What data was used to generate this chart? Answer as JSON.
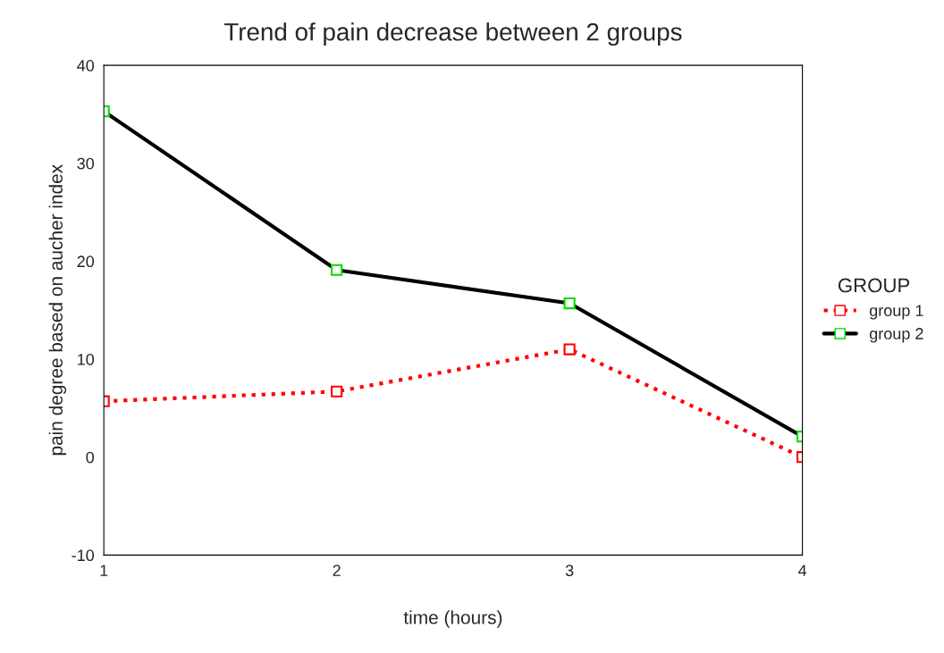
{
  "chart_data": {
    "type": "line",
    "title": "Trend of pain decrease between 2 groups",
    "xlabel": "time (hours)",
    "ylabel": "pain degree based on aucher index",
    "legend_title": "GROUP",
    "x": [
      1,
      2,
      3,
      4
    ],
    "series": [
      {
        "name": "group 1",
        "color": "#ff0000",
        "colors": [
          "#ff0000",
          "#ff0000",
          "#ff0000",
          "#ff0000"
        ],
        "line_style": "dotted",
        "values": [
          5.7,
          6.7,
          11.0,
          0.0
        ]
      },
      {
        "name": "group 2",
        "color": "#000000",
        "colors": [
          "#00dd00",
          "#00dd00",
          "#00dd00",
          "#00dd00"
        ],
        "line_style": "solid",
        "values": [
          35.3,
          19.1,
          15.7,
          2.1
        ]
      }
    ],
    "xlim": [
      1,
      4
    ],
    "xticks": [
      1,
      2,
      3,
      4
    ],
    "ylim": [
      -10,
      40
    ],
    "yticks": [
      -10,
      0,
      10,
      20,
      30,
      40
    ],
    "marker": "square",
    "grid": false,
    "legend": "right"
  }
}
